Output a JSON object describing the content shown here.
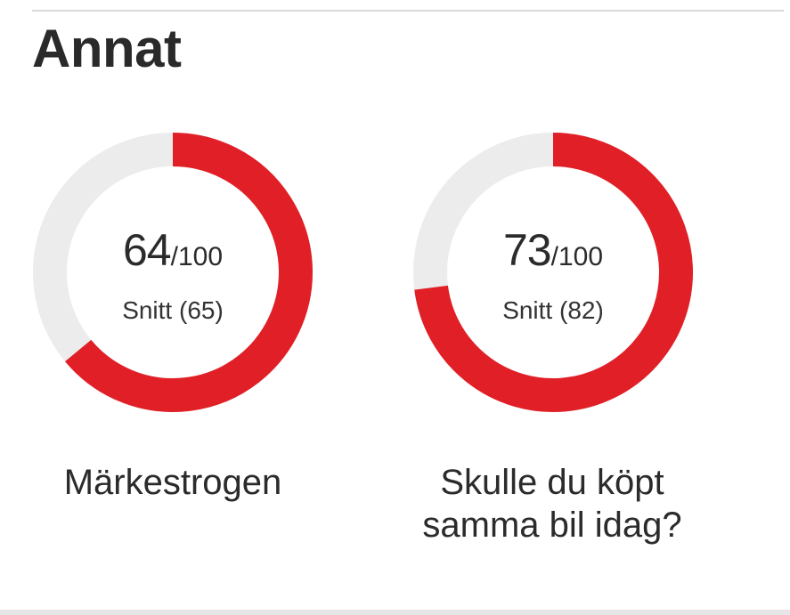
{
  "section": {
    "title": "Annat"
  },
  "colors": {
    "accent": "#e01f26",
    "track": "#ececec"
  },
  "chart_data": [
    {
      "type": "pie",
      "value": 64,
      "max": 100,
      "max_label": "/100",
      "average_label": "Snitt (65)",
      "label": "Märkestrogen"
    },
    {
      "type": "pie",
      "value": 73,
      "max": 100,
      "max_label": "/100",
      "average_label": "Snitt (82)",
      "label": "Skulle du köpt samma bil idag?"
    }
  ]
}
